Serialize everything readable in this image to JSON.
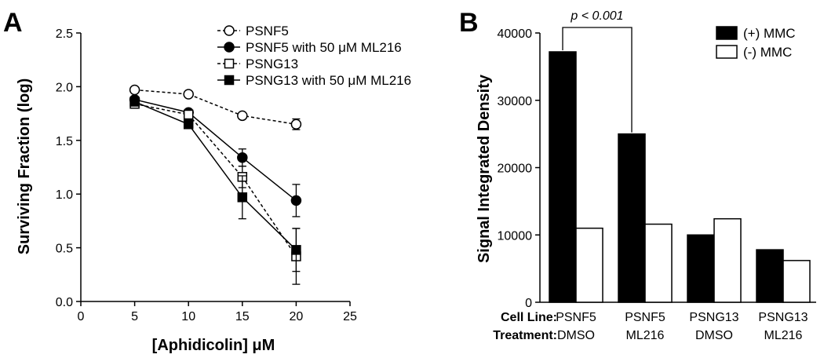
{
  "panels": {
    "left_letter": "A",
    "right_letter": "B"
  },
  "chart_data": [
    {
      "type": "line",
      "xlabel": "[Aphidicolin] μM",
      "ylabel": "Surviving Fraction (log)",
      "xlim": [
        0,
        25
      ],
      "ylim": [
        0,
        2.5
      ],
      "x_ticks": [
        "0",
        "5",
        "10",
        "15",
        "20",
        "25"
      ],
      "y_ticks": [
        "0.0",
        "0.5",
        "1.0",
        "1.5",
        "2.0",
        "2.5"
      ],
      "grid": false,
      "legend_position": "top-right",
      "series": [
        {
          "name": "PSNF5",
          "marker": "open-circle",
          "line": "dashed",
          "x": [
            5,
            10,
            15,
            20
          ],
          "y": [
            1.97,
            1.93,
            1.73,
            1.65
          ],
          "err": [
            0,
            0,
            0,
            0.05
          ]
        },
        {
          "name": "PSNF5 with 50 μM ML216",
          "marker": "filled-circle",
          "line": "solid",
          "x": [
            5,
            10,
            15,
            20
          ],
          "y": [
            1.88,
            1.76,
            1.34,
            0.94
          ],
          "err": [
            0,
            0,
            0.08,
            0.15
          ]
        },
        {
          "name": "PSNG13",
          "marker": "open-square",
          "line": "dashed",
          "x": [
            5,
            10,
            15,
            20
          ],
          "y": [
            1.84,
            1.74,
            1.16,
            0.42
          ],
          "err": [
            0,
            0,
            0.1,
            0.26
          ]
        },
        {
          "name": "PSNG13 with 50 μM ML216",
          "marker": "filled-square",
          "line": "solid",
          "x": [
            5,
            10,
            15,
            20
          ],
          "y": [
            1.86,
            1.65,
            0.97,
            0.48
          ],
          "err": [
            0,
            0,
            0.2,
            0.2
          ]
        }
      ]
    },
    {
      "type": "bar",
      "ylabel": "Signal Integrated Density",
      "ylim": [
        0,
        40000
      ],
      "y_ticks": [
        "0",
        "10000",
        "20000",
        "30000",
        "40000"
      ],
      "categories": [
        {
          "cell_line": "PSNF5",
          "treatment": "DMSO"
        },
        {
          "cell_line": "PSNF5",
          "treatment": "ML216"
        },
        {
          "cell_line": "PSNG13",
          "treatment": "DMSO"
        },
        {
          "cell_line": "PSNG13",
          "treatment": "ML216"
        }
      ],
      "row_labels": {
        "cell_line": "Cell Line:",
        "treatment": "Treatment:"
      },
      "legend_position": "top-right",
      "series": [
        {
          "name": "(+) MMC",
          "color": "#000000",
          "values": [
            37200,
            25000,
            10000,
            7800
          ]
        },
        {
          "name": "(-) MMC",
          "color": "#ffffff",
          "values": [
            11000,
            11600,
            12400,
            6200
          ]
        }
      ],
      "annotation": "p < 0.001"
    }
  ]
}
